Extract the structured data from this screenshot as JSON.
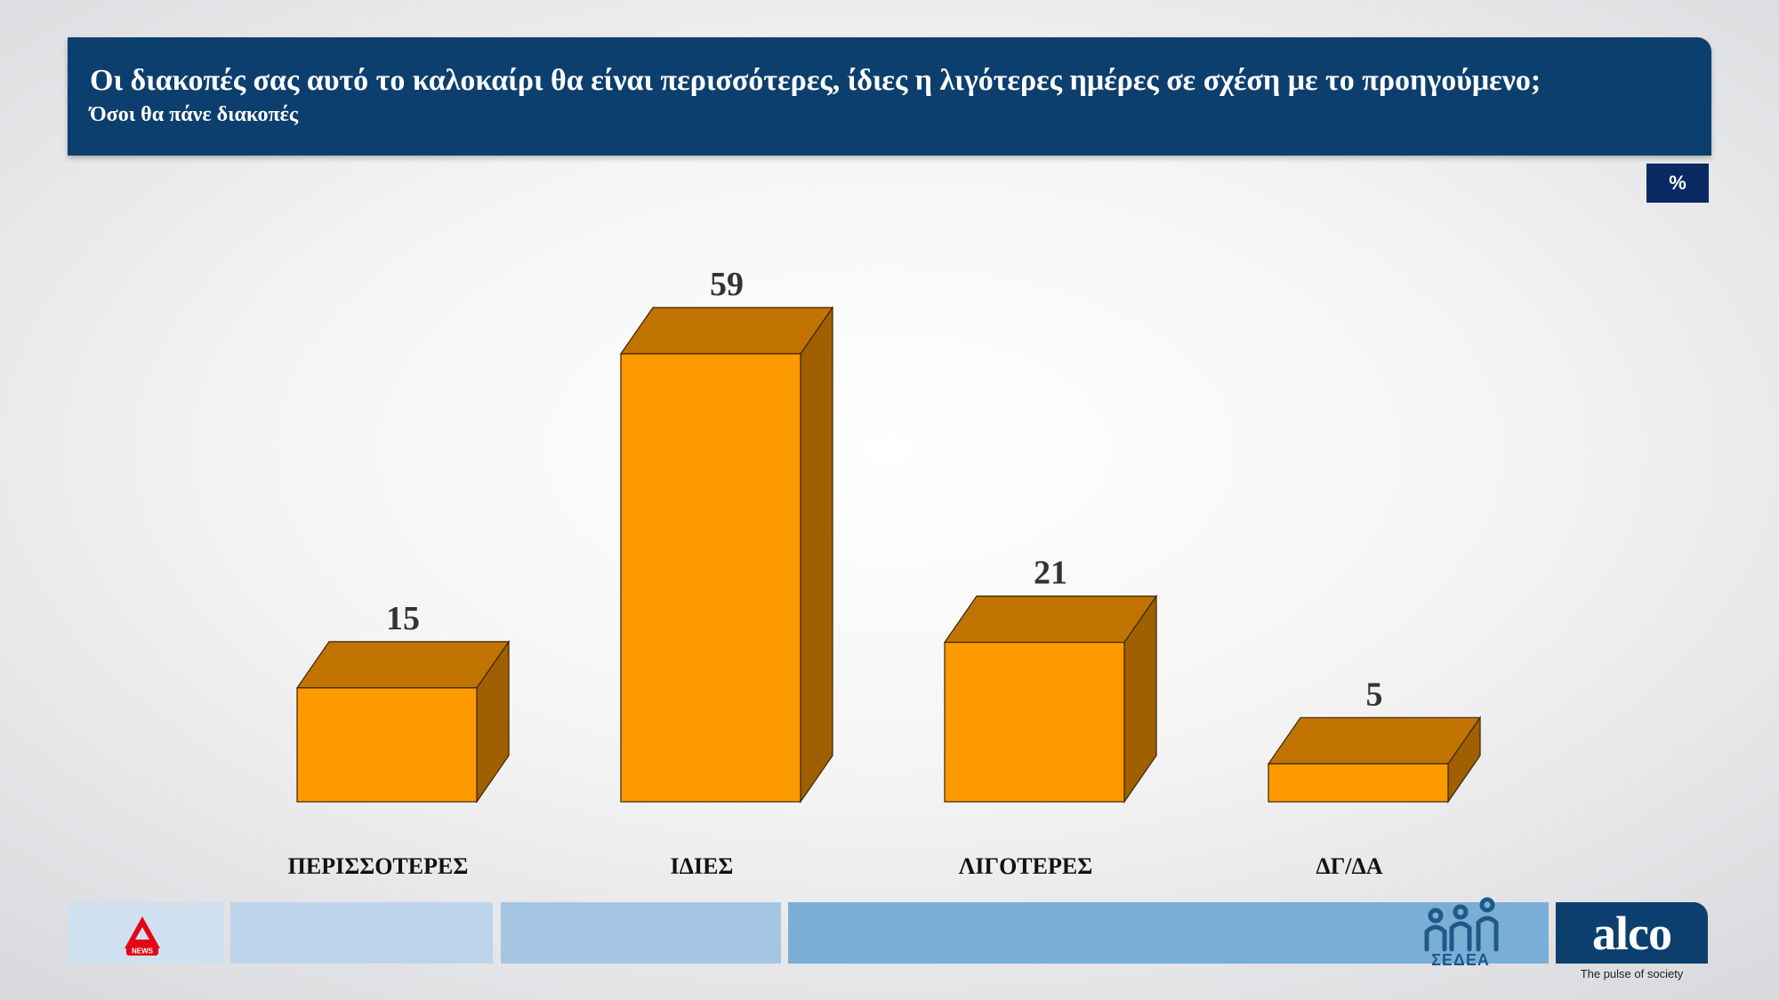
{
  "header": {
    "title": "Οι διακοπές σας αυτό το καλοκαίρι θα είναι περισσότερες, ίδιες η λιγότερες ημέρες σε σχέση με το προηγούμενο;",
    "subtitle": "Όσοι θα πάνε διακοπές"
  },
  "unit_label": "%",
  "chart_data": {
    "type": "bar",
    "title": "Οι διακοπές σας αυτό το καλοκαίρι θα είναι περισσότερες, ίδιες η λιγότερες ημέρες σε σχέση με το προηγούμενο;",
    "subtitle": "Όσοι θα πάνε διακοπές",
    "categories": [
      "ΠΕΡΙΣΣΟΤΕΡΕΣ",
      "ΙΔΙΕΣ",
      "ΛΙΓΟΤΕΡΕΣ",
      "ΔΓ/ΔΑ"
    ],
    "values": [
      15,
      59,
      21,
      5
    ],
    "unit": "%",
    "bar_style": "3d",
    "grid": false,
    "colors": {
      "front": "#ff9900",
      "top": "#c07300",
      "side": "#a05f00"
    }
  },
  "branding": {
    "sedea_label": "ΣΕΔΕΑ",
    "alco_label": "alco",
    "alco_tagline": "The pulse of society",
    "alpha_label": "NEWS"
  }
}
